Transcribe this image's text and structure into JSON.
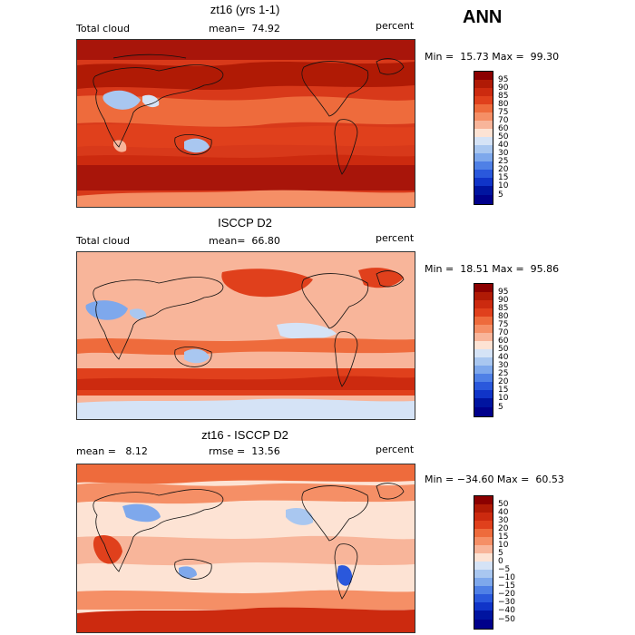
{
  "season": "ANN",
  "panels": [
    {
      "title": "zt16 (yrs 1-1)",
      "left_label": "Total cloud",
      "center_label": "mean=  74.92",
      "right_label": "percent",
      "stats": "Min =  15.73 Max =  99.30",
      "colorbar_ticks": [
        "95",
        "90",
        "85",
        "80",
        "75",
        "70",
        "60",
        "50",
        "40",
        "30",
        "25",
        "20",
        "15",
        "10",
        "5"
      ],
      "colors": [
        "#8b0000",
        "#b01a05",
        "#cc2a0f",
        "#e0401c",
        "#ee6b3c",
        "#f58f66",
        "#f8b59a",
        "#fde3d4",
        "#d5e3f6",
        "#a9c7f0",
        "#7ea8ec",
        "#4f80e6",
        "#2a58dc",
        "#1034c8",
        "#0014a0",
        "#00008b"
      ]
    },
    {
      "title": "ISCCP D2",
      "left_label": "Total cloud",
      "center_label": "mean=  66.80",
      "right_label": "percent",
      "stats": "Min =  18.51 Max =  95.86",
      "colorbar_ticks": [
        "95",
        "90",
        "85",
        "80",
        "75",
        "70",
        "60",
        "50",
        "40",
        "30",
        "25",
        "20",
        "15",
        "10",
        "5"
      ],
      "colors": [
        "#8b0000",
        "#b01a05",
        "#cc2a0f",
        "#e0401c",
        "#ee6b3c",
        "#f58f66",
        "#f8b59a",
        "#fde3d4",
        "#d5e3f6",
        "#a9c7f0",
        "#7ea8ec",
        "#4f80e6",
        "#2a58dc",
        "#1034c8",
        "#0014a0",
        "#00008b"
      ]
    },
    {
      "title": "zt16 - ISCCP D2",
      "left_label": "mean =   8.12",
      "center_label": "rmse =  13.56",
      "right_label": "percent",
      "stats": "Min = −34.60 Max =  60.53",
      "colorbar_ticks": [
        "50",
        "40",
        "30",
        "20",
        "15",
        "10",
        "5",
        "0",
        "−5",
        "−10",
        "−15",
        "−20",
        "−30",
        "−40",
        "−50"
      ],
      "colors": [
        "#8b0000",
        "#b01a05",
        "#cc2a0f",
        "#e0401c",
        "#ee6b3c",
        "#f58f66",
        "#f8b59a",
        "#fde3d4",
        "#d5e3f6",
        "#a9c7f0",
        "#7ea8ec",
        "#4f80e6",
        "#2a58dc",
        "#1034c8",
        "#0014a0",
        "#00008b"
      ]
    }
  ]
}
